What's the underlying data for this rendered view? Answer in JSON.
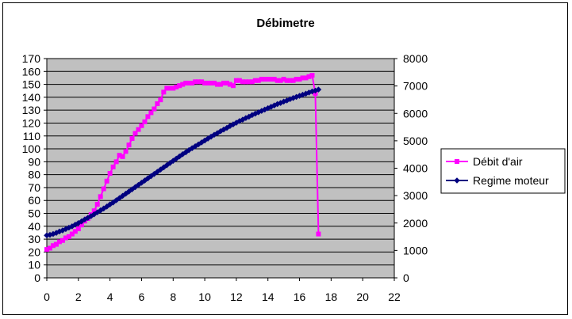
{
  "chart_data": {
    "type": "line",
    "title": "Débimetre",
    "xlabel": "",
    "ylabel": "",
    "xlim": [
      0,
      22
    ],
    "ylim_left": [
      0,
      170
    ],
    "ylim_right": [
      0,
      8000
    ],
    "x_ticks": [
      "0",
      "2",
      "4",
      "6",
      "8",
      "10",
      "12",
      "14",
      "16",
      "18",
      "20",
      "22"
    ],
    "y_ticks_left": [
      "0",
      "10",
      "20",
      "30",
      "40",
      "50",
      "60",
      "70",
      "80",
      "90",
      "100",
      "110",
      "120",
      "130",
      "140",
      "150",
      "160",
      "170"
    ],
    "y_ticks_right": [
      "0",
      "1000",
      "2000",
      "3000",
      "4000",
      "5000",
      "6000",
      "7000",
      "8000"
    ],
    "grid": true,
    "plot_background": "#c0c0c0",
    "legend_position": "right",
    "series": [
      {
        "name": "Débit d'air",
        "axis": "left",
        "color": "#ff00ff",
        "marker": "square",
        "points": [
          [
            0.0,
            22
          ],
          [
            0.2,
            23
          ],
          [
            0.4,
            25
          ],
          [
            0.6,
            26
          ],
          [
            0.8,
            28
          ],
          [
            1.0,
            29
          ],
          [
            1.2,
            31
          ],
          [
            1.4,
            32
          ],
          [
            1.6,
            34
          ],
          [
            1.8,
            36
          ],
          [
            2.0,
            38
          ],
          [
            2.2,
            41
          ],
          [
            2.4,
            44
          ],
          [
            2.6,
            46
          ],
          [
            2.8,
            49
          ],
          [
            3.0,
            52
          ],
          [
            3.2,
            57
          ],
          [
            3.4,
            63
          ],
          [
            3.6,
            69
          ],
          [
            3.8,
            75
          ],
          [
            4.0,
            81
          ],
          [
            4.2,
            86
          ],
          [
            4.4,
            90
          ],
          [
            4.6,
            95
          ],
          [
            4.8,
            94
          ],
          [
            5.0,
            98
          ],
          [
            5.2,
            103
          ],
          [
            5.4,
            108
          ],
          [
            5.6,
            112
          ],
          [
            5.8,
            115
          ],
          [
            6.0,
            118
          ],
          [
            6.2,
            121
          ],
          [
            6.4,
            125
          ],
          [
            6.6,
            128
          ],
          [
            6.8,
            131
          ],
          [
            7.0,
            135
          ],
          [
            7.2,
            138
          ],
          [
            7.4,
            144
          ],
          [
            7.6,
            147
          ],
          [
            7.8,
            147
          ],
          [
            8.0,
            147
          ],
          [
            8.2,
            148
          ],
          [
            8.4,
            149
          ],
          [
            8.6,
            150
          ],
          [
            8.8,
            151
          ],
          [
            9.0,
            151
          ],
          [
            9.2,
            151
          ],
          [
            9.4,
            152
          ],
          [
            9.6,
            152
          ],
          [
            9.8,
            152
          ],
          [
            10.0,
            151
          ],
          [
            10.2,
            151
          ],
          [
            10.4,
            151
          ],
          [
            10.6,
            151
          ],
          [
            10.8,
            150
          ],
          [
            11.0,
            150
          ],
          [
            11.2,
            151
          ],
          [
            11.4,
            151
          ],
          [
            11.6,
            150
          ],
          [
            11.8,
            149
          ],
          [
            12.0,
            153
          ],
          [
            12.2,
            153
          ],
          [
            12.4,
            152
          ],
          [
            12.6,
            152
          ],
          [
            12.8,
            152
          ],
          [
            13.0,
            152
          ],
          [
            13.2,
            153
          ],
          [
            13.4,
            153
          ],
          [
            13.6,
            154
          ],
          [
            13.8,
            154
          ],
          [
            14.0,
            154
          ],
          [
            14.2,
            154
          ],
          [
            14.4,
            154
          ],
          [
            14.6,
            153
          ],
          [
            14.8,
            153
          ],
          [
            15.0,
            154
          ],
          [
            15.2,
            153
          ],
          [
            15.4,
            153
          ],
          [
            15.6,
            153
          ],
          [
            15.8,
            154
          ],
          [
            16.0,
            154
          ],
          [
            16.2,
            155
          ],
          [
            16.4,
            155
          ],
          [
            16.6,
            156
          ],
          [
            16.8,
            157
          ],
          [
            17.0,
            143
          ],
          [
            17.2,
            34
          ]
        ]
      },
      {
        "name": "Regime moteur",
        "axis": "right",
        "color": "#000080",
        "marker": "diamond",
        "points": [
          [
            0.0,
            1550
          ],
          [
            0.2,
            1570
          ],
          [
            0.4,
            1600
          ],
          [
            0.6,
            1640
          ],
          [
            0.8,
            1690
          ],
          [
            1.0,
            1730
          ],
          [
            1.2,
            1780
          ],
          [
            1.4,
            1830
          ],
          [
            1.6,
            1880
          ],
          [
            1.8,
            1940
          ],
          [
            2.0,
            2000
          ],
          [
            2.2,
            2060
          ],
          [
            2.4,
            2130
          ],
          [
            2.6,
            2190
          ],
          [
            2.8,
            2250
          ],
          [
            3.0,
            2320
          ],
          [
            3.2,
            2390
          ],
          [
            3.4,
            2460
          ],
          [
            3.6,
            2530
          ],
          [
            3.8,
            2600
          ],
          [
            4.0,
            2680
          ],
          [
            4.2,
            2750
          ],
          [
            4.4,
            2830
          ],
          [
            4.6,
            2910
          ],
          [
            4.8,
            2990
          ],
          [
            5.0,
            3070
          ],
          [
            5.2,
            3150
          ],
          [
            5.4,
            3230
          ],
          [
            5.6,
            3310
          ],
          [
            5.8,
            3390
          ],
          [
            6.0,
            3470
          ],
          [
            6.2,
            3550
          ],
          [
            6.4,
            3630
          ],
          [
            6.6,
            3710
          ],
          [
            6.8,
            3790
          ],
          [
            7.0,
            3870
          ],
          [
            7.2,
            3950
          ],
          [
            7.4,
            4030
          ],
          [
            7.6,
            4110
          ],
          [
            7.8,
            4190
          ],
          [
            8.0,
            4270
          ],
          [
            8.2,
            4350
          ],
          [
            8.4,
            4430
          ],
          [
            8.6,
            4510
          ],
          [
            8.8,
            4580
          ],
          [
            9.0,
            4660
          ],
          [
            9.2,
            4730
          ],
          [
            9.4,
            4800
          ],
          [
            9.6,
            4870
          ],
          [
            9.8,
            4940
          ],
          [
            10.0,
            5010
          ],
          [
            10.2,
            5080
          ],
          [
            10.4,
            5150
          ],
          [
            10.6,
            5220
          ],
          [
            10.8,
            5280
          ],
          [
            11.0,
            5350
          ],
          [
            11.2,
            5410
          ],
          [
            11.4,
            5470
          ],
          [
            11.6,
            5540
          ],
          [
            11.8,
            5600
          ],
          [
            12.0,
            5660
          ],
          [
            12.2,
            5720
          ],
          [
            12.4,
            5770
          ],
          [
            12.6,
            5830
          ],
          [
            12.8,
            5880
          ],
          [
            13.0,
            5940
          ],
          [
            13.2,
            5990
          ],
          [
            13.4,
            6040
          ],
          [
            13.6,
            6090
          ],
          [
            13.8,
            6140
          ],
          [
            14.0,
            6190
          ],
          [
            14.2,
            6240
          ],
          [
            14.4,
            6290
          ],
          [
            14.6,
            6340
          ],
          [
            14.8,
            6380
          ],
          [
            15.0,
            6430
          ],
          [
            15.2,
            6470
          ],
          [
            15.4,
            6520
          ],
          [
            15.6,
            6560
          ],
          [
            15.8,
            6600
          ],
          [
            16.0,
            6640
          ],
          [
            16.2,
            6680
          ],
          [
            16.4,
            6720
          ],
          [
            16.6,
            6760
          ],
          [
            16.8,
            6800
          ],
          [
            17.0,
            6830
          ],
          [
            17.2,
            6870
          ]
        ]
      }
    ]
  }
}
